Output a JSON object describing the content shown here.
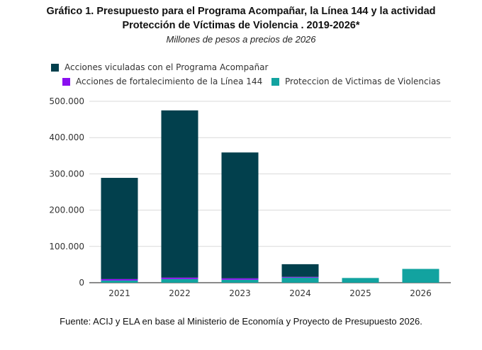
{
  "header": {
    "title_line1": "Gráfico 1. Presupuesto para el Programa Acompañar, la Línea 144 y la actividad",
    "title_line2": "Protección de Víctimas de Violencia . 2019-2026*",
    "subtitle": "Millones de pesos a precios de 2026"
  },
  "legend": [
    {
      "label": "Acciones viculadas con el Programa Acompañar",
      "color": "#02404D"
    },
    {
      "label": "Acciones de fortalecimiento de la Línea 144",
      "color": "#8A10F0"
    },
    {
      "label": "Proteccion de Victimas de Violencias",
      "color": "#12A3A0"
    }
  ],
  "source": "Fuente: ACIJ y ELA en base al Ministerio de Economía y Proyecto de Presupuesto 2026.",
  "chart_data": {
    "type": "bar",
    "stacked": true,
    "title": "Gráfico 1. Presupuesto para el Programa Acompañar, la Línea 144 y la actividad Protección de Víctimas de Violencia . 2019-2026*",
    "subtitle": "Millones de pesos a precios de 2026",
    "xlabel": "",
    "ylabel": "",
    "categories": [
      "2021",
      "2022",
      "2023",
      "2024",
      "2025",
      "2026"
    ],
    "series": [
      {
        "name": "Proteccion de Victimas de Violencias",
        "color": "#12A3A0",
        "values": [
          6000,
          10000,
          8000,
          14000,
          13000,
          38000
        ]
      },
      {
        "name": "Acciones de fortalecimiento de la Línea 144",
        "color": "#8A10F0",
        "values": [
          4000,
          4000,
          4000,
          2000,
          0,
          0
        ]
      },
      {
        "name": "Acciones viculadas con el Programa Acompañar",
        "color": "#02404D",
        "values": [
          279000,
          461000,
          347000,
          35000,
          0,
          0
        ]
      }
    ],
    "ylim": [
      0,
      500000
    ],
    "yticks": [
      0,
      100000,
      200000,
      300000,
      400000,
      500000
    ],
    "ytick_labels": [
      "0",
      "100.000",
      "200.000",
      "300.000",
      "400.000",
      "500.000"
    ],
    "grid": true,
    "legend_position": "top-left"
  }
}
